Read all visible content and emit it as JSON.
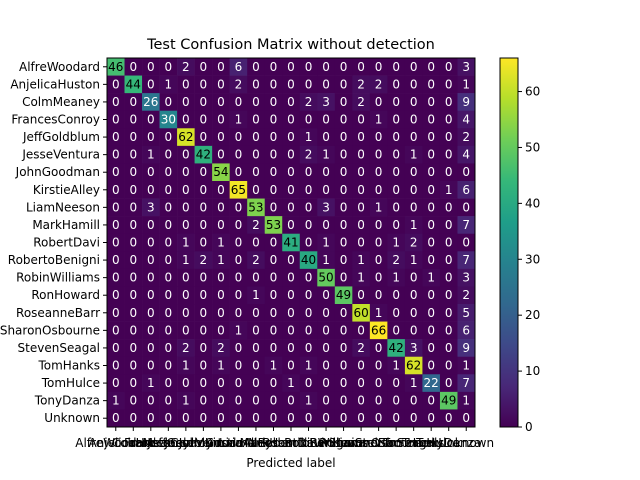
{
  "chart_data": {
    "type": "heatmap",
    "title": "Test Confusion Matrix without detection",
    "xlabel": "Predicted label",
    "ylabel": "",
    "labels": [
      "AlfreWoodard",
      "AnjelicaHuston",
      "ColmMeaney",
      "FrancesConroy",
      "JeffGoldblum",
      "JesseVentura",
      "JohnGoodman",
      "KirstieAlley",
      "LiamNeeson",
      "MarkHamill",
      "RobertDavi",
      "RobertoBenigni",
      "RobinWilliams",
      "RonHoward",
      "RoseanneBarr",
      "SharonOsbourne",
      "StevenSeagal",
      "TomHanks",
      "TomHulce",
      "TonyDanza",
      "Unknown"
    ],
    "matrix": [
      [
        46,
        0,
        0,
        0,
        2,
        0,
        0,
        6,
        0,
        0,
        0,
        0,
        0,
        0,
        0,
        0,
        0,
        0,
        0,
        0,
        3
      ],
      [
        0,
        44,
        0,
        1,
        0,
        0,
        0,
        2,
        0,
        0,
        0,
        0,
        0,
        0,
        2,
        2,
        0,
        0,
        0,
        0,
        1
      ],
      [
        0,
        0,
        26,
        0,
        0,
        0,
        0,
        0,
        0,
        0,
        0,
        2,
        3,
        0,
        2,
        0,
        0,
        0,
        0,
        0,
        9
      ],
      [
        0,
        0,
        0,
        30,
        0,
        0,
        0,
        1,
        0,
        0,
        0,
        0,
        0,
        0,
        0,
        1,
        0,
        0,
        0,
        0,
        4
      ],
      [
        0,
        0,
        0,
        0,
        62,
        0,
        0,
        0,
        0,
        0,
        0,
        1,
        0,
        0,
        0,
        0,
        0,
        0,
        0,
        0,
        2
      ],
      [
        0,
        0,
        1,
        0,
        0,
        42,
        0,
        0,
        0,
        0,
        0,
        2,
        1,
        0,
        0,
        0,
        0,
        1,
        0,
        0,
        4
      ],
      [
        0,
        0,
        0,
        0,
        0,
        0,
        54,
        0,
        0,
        0,
        0,
        0,
        0,
        0,
        0,
        0,
        0,
        0,
        0,
        0,
        0
      ],
      [
        0,
        0,
        0,
        0,
        0,
        0,
        0,
        65,
        0,
        0,
        0,
        0,
        0,
        0,
        0,
        0,
        0,
        0,
        0,
        1,
        6
      ],
      [
        0,
        0,
        3,
        0,
        0,
        0,
        0,
        0,
        53,
        0,
        0,
        0,
        3,
        0,
        0,
        1,
        0,
        0,
        0,
        0,
        0
      ],
      [
        0,
        0,
        0,
        0,
        0,
        0,
        0,
        0,
        2,
        53,
        0,
        0,
        0,
        0,
        0,
        0,
        0,
        1,
        0,
        0,
        7
      ],
      [
        0,
        0,
        0,
        0,
        1,
        0,
        1,
        0,
        0,
        0,
        41,
        0,
        1,
        0,
        0,
        0,
        1,
        2,
        0,
        0,
        0
      ],
      [
        0,
        0,
        0,
        0,
        1,
        2,
        1,
        0,
        2,
        0,
        0,
        40,
        1,
        0,
        1,
        0,
        2,
        1,
        0,
        0,
        7
      ],
      [
        0,
        0,
        0,
        0,
        0,
        0,
        0,
        0,
        0,
        0,
        0,
        0,
        50,
        0,
        1,
        0,
        1,
        0,
        1,
        0,
        3
      ],
      [
        0,
        0,
        0,
        0,
        0,
        0,
        0,
        0,
        1,
        0,
        0,
        0,
        0,
        49,
        0,
        0,
        0,
        0,
        0,
        0,
        2
      ],
      [
        0,
        0,
        0,
        0,
        0,
        0,
        0,
        0,
        0,
        0,
        0,
        0,
        0,
        0,
        60,
        1,
        0,
        0,
        0,
        0,
        5
      ],
      [
        0,
        0,
        0,
        0,
        0,
        0,
        0,
        1,
        0,
        0,
        0,
        0,
        0,
        0,
        0,
        66,
        0,
        0,
        0,
        0,
        6
      ],
      [
        0,
        0,
        0,
        0,
        2,
        0,
        2,
        0,
        0,
        0,
        0,
        0,
        0,
        0,
        2,
        0,
        42,
        3,
        0,
        0,
        9
      ],
      [
        0,
        0,
        0,
        0,
        1,
        0,
        1,
        0,
        0,
        1,
        0,
        1,
        0,
        0,
        0,
        0,
        1,
        62,
        0,
        0,
        1
      ],
      [
        0,
        0,
        1,
        0,
        0,
        0,
        0,
        0,
        0,
        0,
        1,
        0,
        0,
        0,
        0,
        0,
        0,
        1,
        22,
        0,
        7
      ],
      [
        1,
        0,
        0,
        0,
        1,
        0,
        0,
        0,
        0,
        0,
        0,
        1,
        0,
        0,
        0,
        0,
        0,
        0,
        0,
        49,
        1
      ],
      [
        0,
        0,
        0,
        0,
        0,
        0,
        0,
        0,
        0,
        0,
        0,
        0,
        0,
        0,
        0,
        0,
        0,
        0,
        0,
        0,
        0
      ]
    ],
    "colormap": "viridis",
    "vmin": 0,
    "vmax": 66,
    "colorbar_ticks": [
      0,
      10,
      20,
      30,
      40,
      50,
      60
    ]
  },
  "colors": {
    "dark_text": "#000000",
    "light_text": "#ffffff",
    "viridis": [
      "#440154",
      "#482878",
      "#3e4989",
      "#31688e",
      "#26828e",
      "#1f9e89",
      "#35b779",
      "#6ece58",
      "#b5de2b",
      "#fde725"
    ]
  }
}
